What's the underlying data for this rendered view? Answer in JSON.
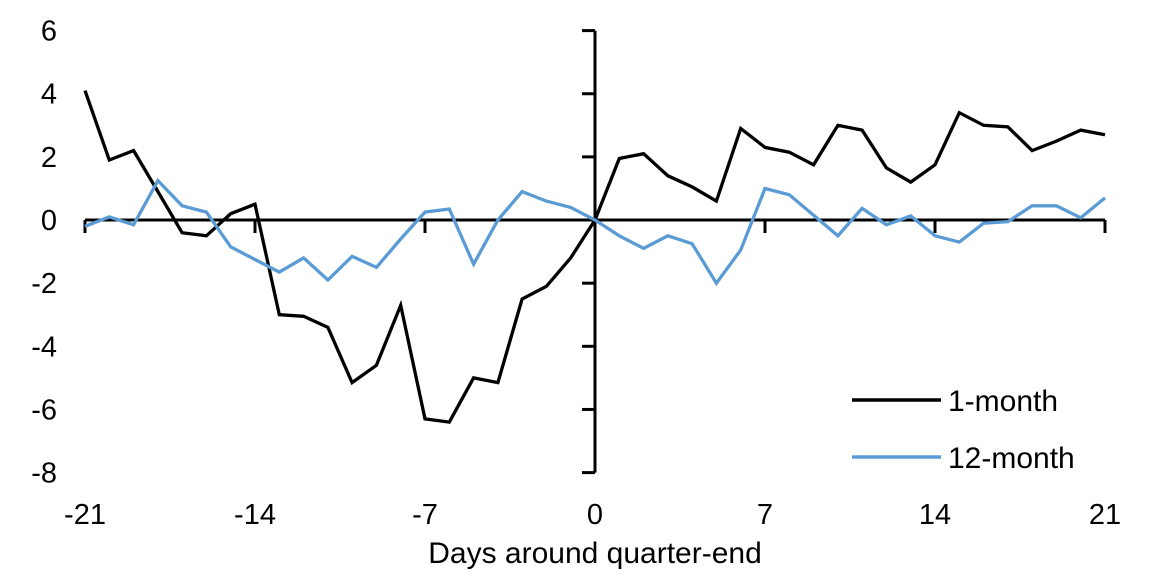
{
  "chart_data": {
    "type": "line",
    "title": "",
    "xlabel": "Days around quarter-end",
    "ylabel": "",
    "xlim": [
      -21,
      21
    ],
    "ylim": [
      -8,
      6
    ],
    "grid": false,
    "legend_position": "lower right",
    "axis_color": "#000000",
    "xticks": [
      {
        "value": -21,
        "label": "-21"
      },
      {
        "value": -14,
        "label": "-14"
      },
      {
        "value": -7,
        "label": "-7"
      },
      {
        "value": 0,
        "label": "0"
      },
      {
        "value": 7,
        "label": "7"
      },
      {
        "value": 14,
        "label": "14"
      },
      {
        "value": 21,
        "label": "21"
      }
    ],
    "yticks": [
      {
        "value": 6,
        "label": "6"
      },
      {
        "value": 4,
        "label": "4"
      },
      {
        "value": 2,
        "label": "2"
      },
      {
        "value": 0,
        "label": "0"
      },
      {
        "value": -2,
        "label": "-2"
      },
      {
        "value": -4,
        "label": "-4"
      },
      {
        "value": -6,
        "label": "-6"
      },
      {
        "value": -8,
        "label": "-8"
      }
    ],
    "x": [
      -21,
      -20,
      -19,
      -18,
      -17,
      -16,
      -15,
      -14,
      -13,
      -12,
      -11,
      -10,
      -9,
      -8,
      -7,
      -6,
      -5,
      -4,
      -3,
      -2,
      -1,
      0,
      1,
      2,
      3,
      4,
      5,
      6,
      7,
      8,
      9,
      10,
      11,
      12,
      13,
      14,
      15,
      16,
      17,
      18,
      19,
      20,
      21
    ],
    "series": [
      {
        "name": "1-month",
        "color": "#000000",
        "values": [
          4.1,
          1.9,
          2.2,
          0.9,
          -0.4,
          -0.5,
          0.2,
          0.5,
          -3.0,
          -3.05,
          -3.4,
          -5.15,
          -4.6,
          -2.7,
          -6.3,
          -6.4,
          -5.0,
          -5.15,
          -2.5,
          -2.1,
          -1.2,
          0.0,
          1.95,
          2.1,
          1.4,
          1.05,
          0.6,
          2.9,
          2.3,
          2.15,
          1.75,
          3.0,
          2.85,
          1.65,
          1.2,
          1.75,
          3.4,
          3.0,
          2.95,
          2.2,
          2.5,
          2.85,
          2.7
        ]
      },
      {
        "name": "12-month",
        "color": "#5B9BD5",
        "values": [
          -0.2,
          0.1,
          -0.15,
          1.25,
          0.45,
          0.25,
          -0.85,
          -1.25,
          -1.65,
          -1.2,
          -1.9,
          -1.15,
          -1.5,
          -0.6,
          0.25,
          0.35,
          -1.4,
          0.0,
          0.9,
          0.6,
          0.4,
          0.0,
          -0.5,
          -0.9,
          -0.5,
          -0.75,
          -2.0,
          -0.95,
          1.0,
          0.8,
          0.15,
          -0.5,
          0.37,
          -0.15,
          0.13,
          -0.5,
          -0.7,
          -0.1,
          -0.05,
          0.45,
          0.45,
          0.07,
          0.7
        ]
      }
    ]
  }
}
